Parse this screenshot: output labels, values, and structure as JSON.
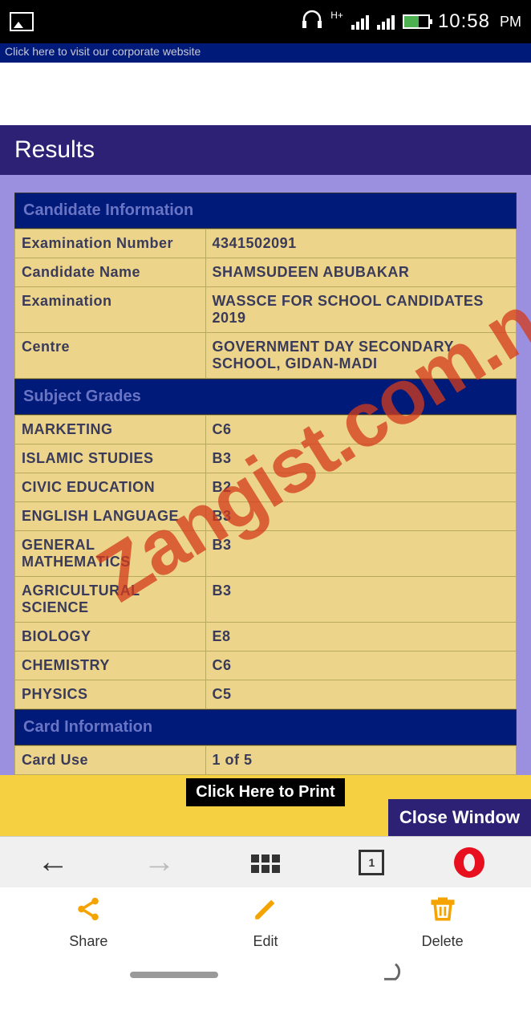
{
  "status_bar": {
    "network_label": "H+",
    "time": "10:58",
    "period": "PM"
  },
  "banner_text": "Click here to visit our corporate website",
  "page_title": "Results",
  "sections": {
    "candidate_header": "Candidate Information",
    "grades_header": "Subject Grades",
    "card_header": "Card Information"
  },
  "candidate_info": [
    {
      "label": "Examination Number",
      "value": "4341502091"
    },
    {
      "label": "Candidate Name",
      "value": "SHAMSUDEEN ABUBAKAR"
    },
    {
      "label": "Examination",
      "value": "WASSCE FOR SCHOOL CANDIDATES 2019"
    },
    {
      "label": "Centre",
      "value": "GOVERNMENT DAY SECONDARY SCHOOL, GIDAN-MADI"
    }
  ],
  "subject_grades": [
    {
      "subject": "MARKETING",
      "grade": "C6"
    },
    {
      "subject": "ISLAMIC STUDIES",
      "grade": "B3"
    },
    {
      "subject": "CIVIC EDUCATION",
      "grade": "B2"
    },
    {
      "subject": "ENGLISH LANGUAGE",
      "grade": "B3"
    },
    {
      "subject": "GENERAL MATHEMATICS",
      "grade": "B3"
    },
    {
      "subject": "AGRICULTURAL SCIENCE",
      "grade": "B3"
    },
    {
      "subject": "BIOLOGY",
      "grade": "E8"
    },
    {
      "subject": "CHEMISTRY",
      "grade": "C6"
    },
    {
      "subject": "PHYSICS",
      "grade": "C5"
    }
  ],
  "card_info": [
    {
      "label": "Card Use",
      "value": "1 of 5"
    }
  ],
  "buttons": {
    "print": "Click Here to Print",
    "close": "Close Window"
  },
  "watermark_text": "Zangist.com.ng",
  "opera_tabs_count": "1",
  "bottom_actions": {
    "share": "Share",
    "edit": "Edit",
    "delete": "Delete"
  },
  "colors": {
    "header_bg": "#2c2174",
    "section_head_bg": "#001a7a",
    "section_head_text": "#6a74c4",
    "purple_wrap": "#9b8fe0",
    "table_bg": "#ecd58a",
    "table_border": "#b8a95f",
    "action_strip": "#f5d040",
    "watermark": "#d43a1a",
    "opera_red": "#e8101e",
    "action_orange": "#f5a300"
  }
}
